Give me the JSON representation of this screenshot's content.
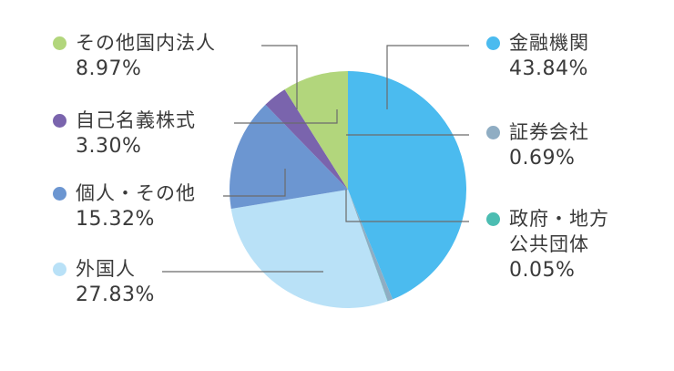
{
  "chart_data": {
    "type": "pie",
    "title": "",
    "start_angle_deg": 0,
    "direction": "clockwise",
    "slices": [
      {
        "label": "金融機関",
        "label_lines": [
          "金融機関"
        ],
        "value": 43.84,
        "value_text": "43.84%",
        "color": "#4bbbef"
      },
      {
        "label": "証券会社",
        "label_lines": [
          "証券会社"
        ],
        "value": 0.69,
        "value_text": "0.69%",
        "color": "#8fadc3"
      },
      {
        "label": "政府・地方公共団体",
        "label_lines": [
          "政府・地方",
          "公共団体"
        ],
        "value": 0.05,
        "value_text": "0.05%",
        "color": "#4cbdb2"
      },
      {
        "label": "外国人",
        "label_lines": [
          "外国人"
        ],
        "value": 27.83,
        "value_text": "27.83%",
        "color": "#b9e1f7"
      },
      {
        "label": "個人・その他",
        "label_lines": [
          "個人・その他"
        ],
        "value": 15.32,
        "value_text": "15.32%",
        "color": "#6c96d1"
      },
      {
        "label": "自己名義株式",
        "label_lines": [
          "自己名義株式"
        ],
        "value": 3.3,
        "value_text": "3.30%",
        "color": "#7a64ad"
      },
      {
        "label": "その他国内法人",
        "label_lines": [
          "その他国内法人"
        ],
        "value": 8.97,
        "value_text": "8.97%",
        "color": "#b2d67c"
      }
    ]
  }
}
